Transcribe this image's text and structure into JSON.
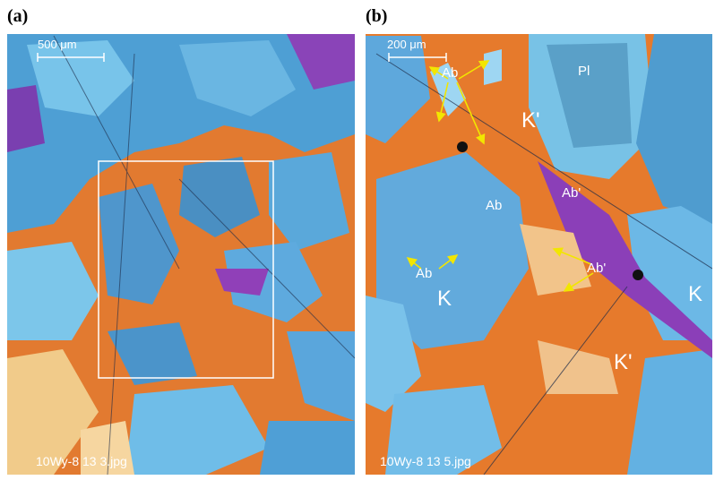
{
  "panels": [
    {
      "label": "(a)",
      "scale_bar": "500 μm",
      "filename": "10Wy-8 13 3.jpg"
    },
    {
      "label": "(b)",
      "scale_bar": "200 μm",
      "filename": "10Wy-8 13 5.jpg",
      "annotations": [
        "Ab",
        "Pl",
        "K'",
        "Ab",
        "Ab'",
        "Ab",
        "Ab'",
        "K",
        "K",
        "K'"
      ]
    }
  ]
}
